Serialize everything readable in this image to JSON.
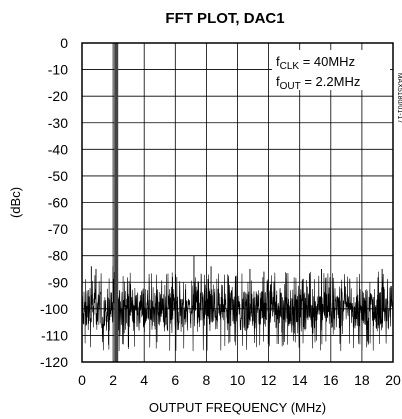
{
  "chart_data": {
    "type": "line",
    "title": "FFT PLOT, DAC1",
    "xlabel": "OUTPUT FREQUENCY (MHz)",
    "ylabel": "(dBc)",
    "xlim": [
      0,
      20
    ],
    "ylim": [
      -120,
      0
    ],
    "xticks": [
      "0",
      "2",
      "4",
      "6",
      "8",
      "10",
      "12",
      "14",
      "16",
      "18",
      "20"
    ],
    "yticks": [
      "0",
      "-10",
      "-20",
      "-30",
      "-40",
      "-50",
      "-60",
      "-70",
      "-80",
      "-90",
      "-100",
      "-110",
      "-120"
    ],
    "grid": true,
    "fundamental": {
      "x": 2.2,
      "y": 0
    },
    "noise_floor": {
      "median": -100,
      "upper": -88,
      "lower": -112
    },
    "spurs": [
      {
        "x": 2.0,
        "y": -84
      },
      {
        "x": 0.6,
        "y": -84
      },
      {
        "x": 0.9,
        "y": -85
      },
      {
        "x": 7.2,
        "y": -80
      },
      {
        "x": 8.3,
        "y": -84
      },
      {
        "x": 10.8,
        "y": -85
      },
      {
        "x": 11.7,
        "y": -86
      },
      {
        "x": 15.4,
        "y": -85
      },
      {
        "x": 19.3,
        "y": -85
      }
    ],
    "annotations": {
      "fclk_prefix": "f",
      "fclk_sub": "CLK",
      "fclk_value": " = 40MHz",
      "fout_prefix": "f",
      "fout_sub": "OUT",
      "fout_value": " = 2.2MHz"
    },
    "side_id": "MAX5180/01-17"
  }
}
